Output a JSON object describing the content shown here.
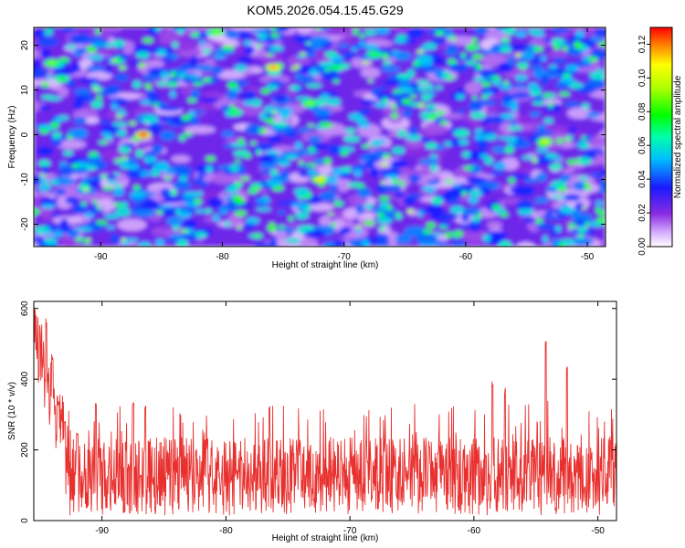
{
  "title": "KOM5.2026.054.15.45.G29",
  "chart_data": [
    {
      "type": "heatmap",
      "name": "spectrogram",
      "xlabel": "Height of straight line (km)",
      "ylabel": "Frequency (Hz)",
      "xlim": [
        -95.5,
        -48.5
      ],
      "ylim": [
        -25,
        24
      ],
      "xticks": [
        -90,
        -80,
        -70,
        -60,
        -50
      ],
      "yticks": [
        -20,
        -10,
        0,
        10,
        20
      ],
      "colorbar": {
        "label": "Normalized spectral amplitude",
        "range": [
          0.0,
          0.13
        ],
        "ticks": [
          "0.00",
          "0.02",
          "0.04",
          "0.06",
          "0.08",
          "0.10",
          "0.12"
        ]
      },
      "peaks": [
        {
          "x": -86.5,
          "y": 0,
          "value": 0.13
        },
        {
          "x": -75.8,
          "y": 15,
          "value": 0.12
        },
        {
          "x": -72.0,
          "y": -10,
          "value": 0.11
        },
        {
          "x": -53.5,
          "y": -1.5,
          "value": 0.1
        },
        {
          "x": -94.0,
          "y": 16,
          "value": 0.09
        },
        {
          "x": -72.8,
          "y": 7,
          "value": 0.09
        },
        {
          "x": -80.5,
          "y": 23,
          "value": 0.09
        },
        {
          "x": -67.5,
          "y": 18,
          "value": 0.08
        },
        {
          "x": -79.0,
          "y": 5,
          "value": 0.08
        },
        {
          "x": -93.2,
          "y": 12.5,
          "value": 0.08
        }
      ]
    },
    {
      "type": "line",
      "name": "snr",
      "xlabel": "Height of straight line (km)",
      "ylabel": "SNR (10 * v/v)",
      "xlim": [
        -95.5,
        -48.5
      ],
      "ylim": [
        0,
        620
      ],
      "xticks": [
        -90,
        -80,
        -70,
        -60,
        -50
      ],
      "yticks": [
        0,
        200,
        400,
        600
      ],
      "series": [
        {
          "name": "SNR",
          "color": "#e8302e",
          "baseline": 125,
          "noise_amplitude": 110,
          "landmarks": [
            {
              "x": -95.5,
              "y": 620
            },
            {
              "x": -95.0,
              "y": 560
            },
            {
              "x": -94.5,
              "y": 580
            },
            {
              "x": -94.0,
              "y": 480
            },
            {
              "x": -93.5,
              "y": 350
            },
            {
              "x": -93.0,
              "y": 300
            },
            {
              "x": -92.0,
              "y": 260
            },
            {
              "x": -90.5,
              "y": 350
            },
            {
              "x": -87.5,
              "y": 345
            },
            {
              "x": -86.5,
              "y": 330
            },
            {
              "x": -76.5,
              "y": 335
            },
            {
              "x": -58.5,
              "y": 410
            },
            {
              "x": -57.5,
              "y": 380
            },
            {
              "x": -54.2,
              "y": 520
            },
            {
              "x": -52.5,
              "y": 440
            },
            {
              "x": -49.0,
              "y": 240
            }
          ]
        }
      ]
    }
  ]
}
